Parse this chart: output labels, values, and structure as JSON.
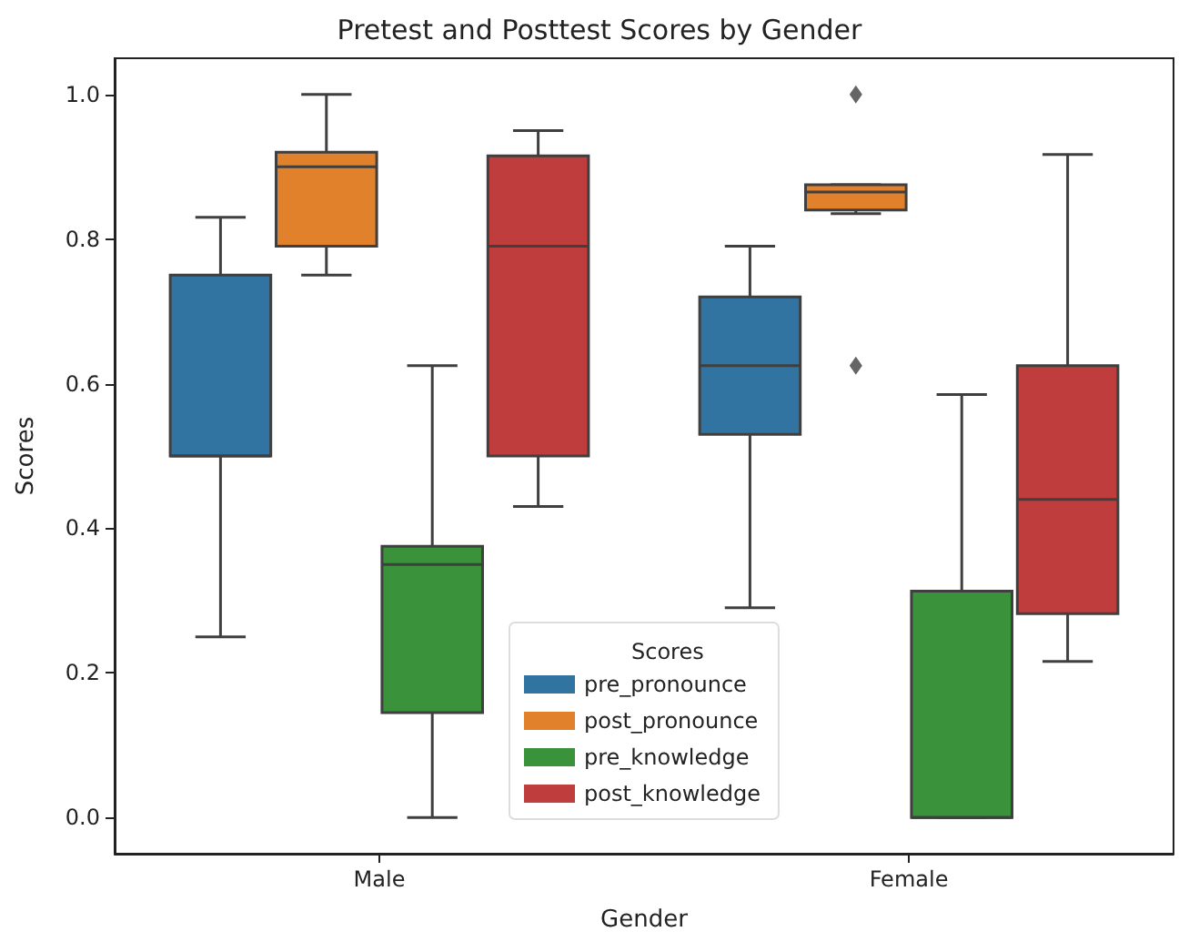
{
  "chart_data": {
    "type": "box",
    "title": "Pretest and Posttest Scores by Gender",
    "xlabel": "Gender",
    "ylabel": "Scores",
    "legend_title": "Scores",
    "legend": "bottom",
    "grid": false,
    "categories": [
      "Male",
      "Female"
    ],
    "ylim": [
      -0.05,
      1.05
    ],
    "yticks": [
      {
        "value": 0,
        "label": "0.0"
      },
      {
        "value": 0.2,
        "label": "0.2"
      },
      {
        "value": 0.4,
        "label": "0.4"
      },
      {
        "value": 0.6,
        "label": "0.6"
      },
      {
        "value": 0.8,
        "label": "0.8"
      },
      {
        "value": 1,
        "label": "1.0"
      }
    ],
    "series": [
      {
        "name": "pre_pronounce",
        "color": "#3274a1",
        "boxes": [
          {
            "low": 0.25,
            "q1": 0.5,
            "median": 0.5,
            "q3": 0.75,
            "high": 0.83
          },
          {
            "low": 0.29,
            "q1": 0.53,
            "median": 0.625,
            "q3": 0.72,
            "high": 0.79
          }
        ]
      },
      {
        "name": "post_pronounce",
        "color": "#e1812c",
        "boxes": [
          {
            "low": 0.75,
            "q1": 0.79,
            "median": 0.9,
            "q3": 0.92,
            "high": 1.0
          },
          {
            "low": 0.835,
            "q1": 0.84,
            "median": 0.865,
            "q3": 0.875,
            "high": 0.875,
            "outliers": [
              1.0,
              0.625
            ]
          }
        ]
      },
      {
        "name": "pre_knowledge",
        "color": "#3a923a",
        "boxes": [
          {
            "low": 0.0,
            "q1": 0.145,
            "median": 0.35,
            "q3": 0.375,
            "high": 0.625
          },
          {
            "low": 0.0,
            "q1": 0.0,
            "median": 0.0,
            "q3": 0.313,
            "high": 0.585
          }
        ]
      },
      {
        "name": "post_knowledge",
        "color": "#c03d3e",
        "boxes": [
          {
            "low": 0.43,
            "q1": 0.5,
            "median": 0.79,
            "q3": 0.915,
            "high": 0.95
          },
          {
            "low": 0.216,
            "q1": 0.282,
            "median": 0.44,
            "q3": 0.625,
            "high": 0.917
          }
        ]
      }
    ]
  }
}
